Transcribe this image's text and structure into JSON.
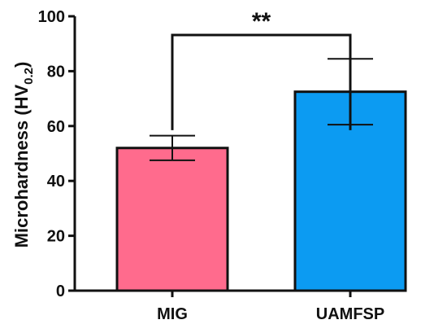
{
  "chart_data": {
    "type": "bar",
    "categories": [
      "MIG",
      "UAMFSP"
    ],
    "values": [
      52,
      72.5
    ],
    "errors": [
      4.5,
      12
    ],
    "colors": [
      "#FF6B8D",
      "#0C9BF2"
    ],
    "ylabel_main": "Microhardness (HV",
    "ylabel_sub": "0.2",
    "ylabel_close": ")",
    "ylim": [
      0,
      100
    ],
    "yticks": [
      0,
      20,
      40,
      60,
      80,
      100
    ],
    "ytick_labels": [
      "0",
      "20",
      "40",
      "60",
      "80",
      "100"
    ],
    "grid": false,
    "annotation": {
      "text": "**",
      "from_category": "MIG",
      "to_category": "UAMFSP"
    }
  }
}
